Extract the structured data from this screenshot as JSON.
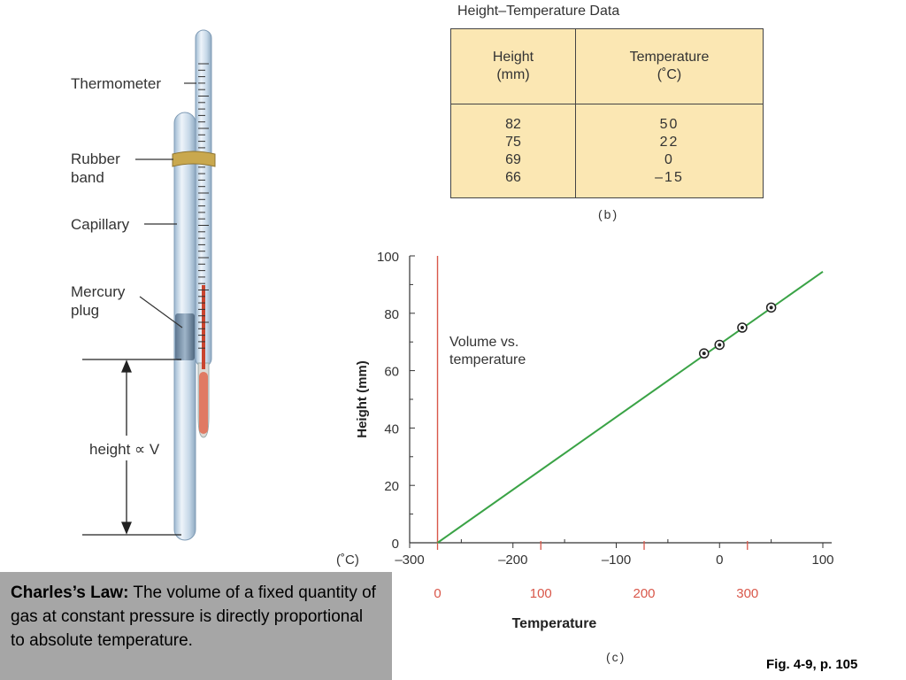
{
  "apparatus": {
    "thermometer_label": "Thermometer",
    "rubber_band_label_line1": "Rubber",
    "rubber_band_label_line2": "band",
    "capillary_label": "Capillary",
    "mercury_label_line1": "Mercury",
    "mercury_label_line2": "plug",
    "height_label": "height ∝ V"
  },
  "table": {
    "title": "Height–Temperature Data",
    "headers": [
      {
        "line1": "Height",
        "line2": "(mm)"
      },
      {
        "line1": "Temperature",
        "line2": "(˚C)"
      }
    ],
    "rows": [
      {
        "height": "82",
        "temperature": "50"
      },
      {
        "height": "75",
        "temperature": "22"
      },
      {
        "height": "69",
        "temperature": "0"
      },
      {
        "height": "66",
        "temperature": "–15"
      }
    ],
    "caption": "(b)"
  },
  "chart_data": {
    "type": "line",
    "title": "",
    "annotation": "Volume vs. temperature",
    "ylabel": "Height (mm)",
    "xlabel": "Temperature",
    "ylim": [
      0,
      100
    ],
    "xlim": [
      -300,
      100
    ],
    "x_unit_label": "(˚C)",
    "x_ticks_celsius": [
      "–300",
      "–200",
      "–100",
      "0",
      "100"
    ],
    "x_ticks_kelvin": [
      "0",
      "100",
      "200",
      "300"
    ],
    "y_ticks": [
      "0",
      "20",
      "40",
      "60",
      "80",
      "100"
    ],
    "kelvin_tick_celsius_values": [
      -273,
      -173,
      -73,
      27
    ],
    "absolute_zero_celsius": -273,
    "series": [
      {
        "x": [
          -15,
          0,
          22,
          50
        ],
        "y": [
          66,
          69,
          75,
          82
        ]
      }
    ],
    "fit_line": {
      "x": [
        -273,
        100
      ],
      "y": [
        0,
        94.5
      ]
    },
    "colors": {
      "fit_line": "#3aa346",
      "absolute_zero_line": "#d9574a",
      "kelvin_labels": "#d9574a"
    },
    "caption": "(c)"
  },
  "charles": {
    "term": "Charles’s Law:",
    "text": " The volume of a fixed quantity of gas at constant pressure is directly proportional to absolute temperature."
  },
  "figure_ref": "Fig. 4-9, p. 105"
}
